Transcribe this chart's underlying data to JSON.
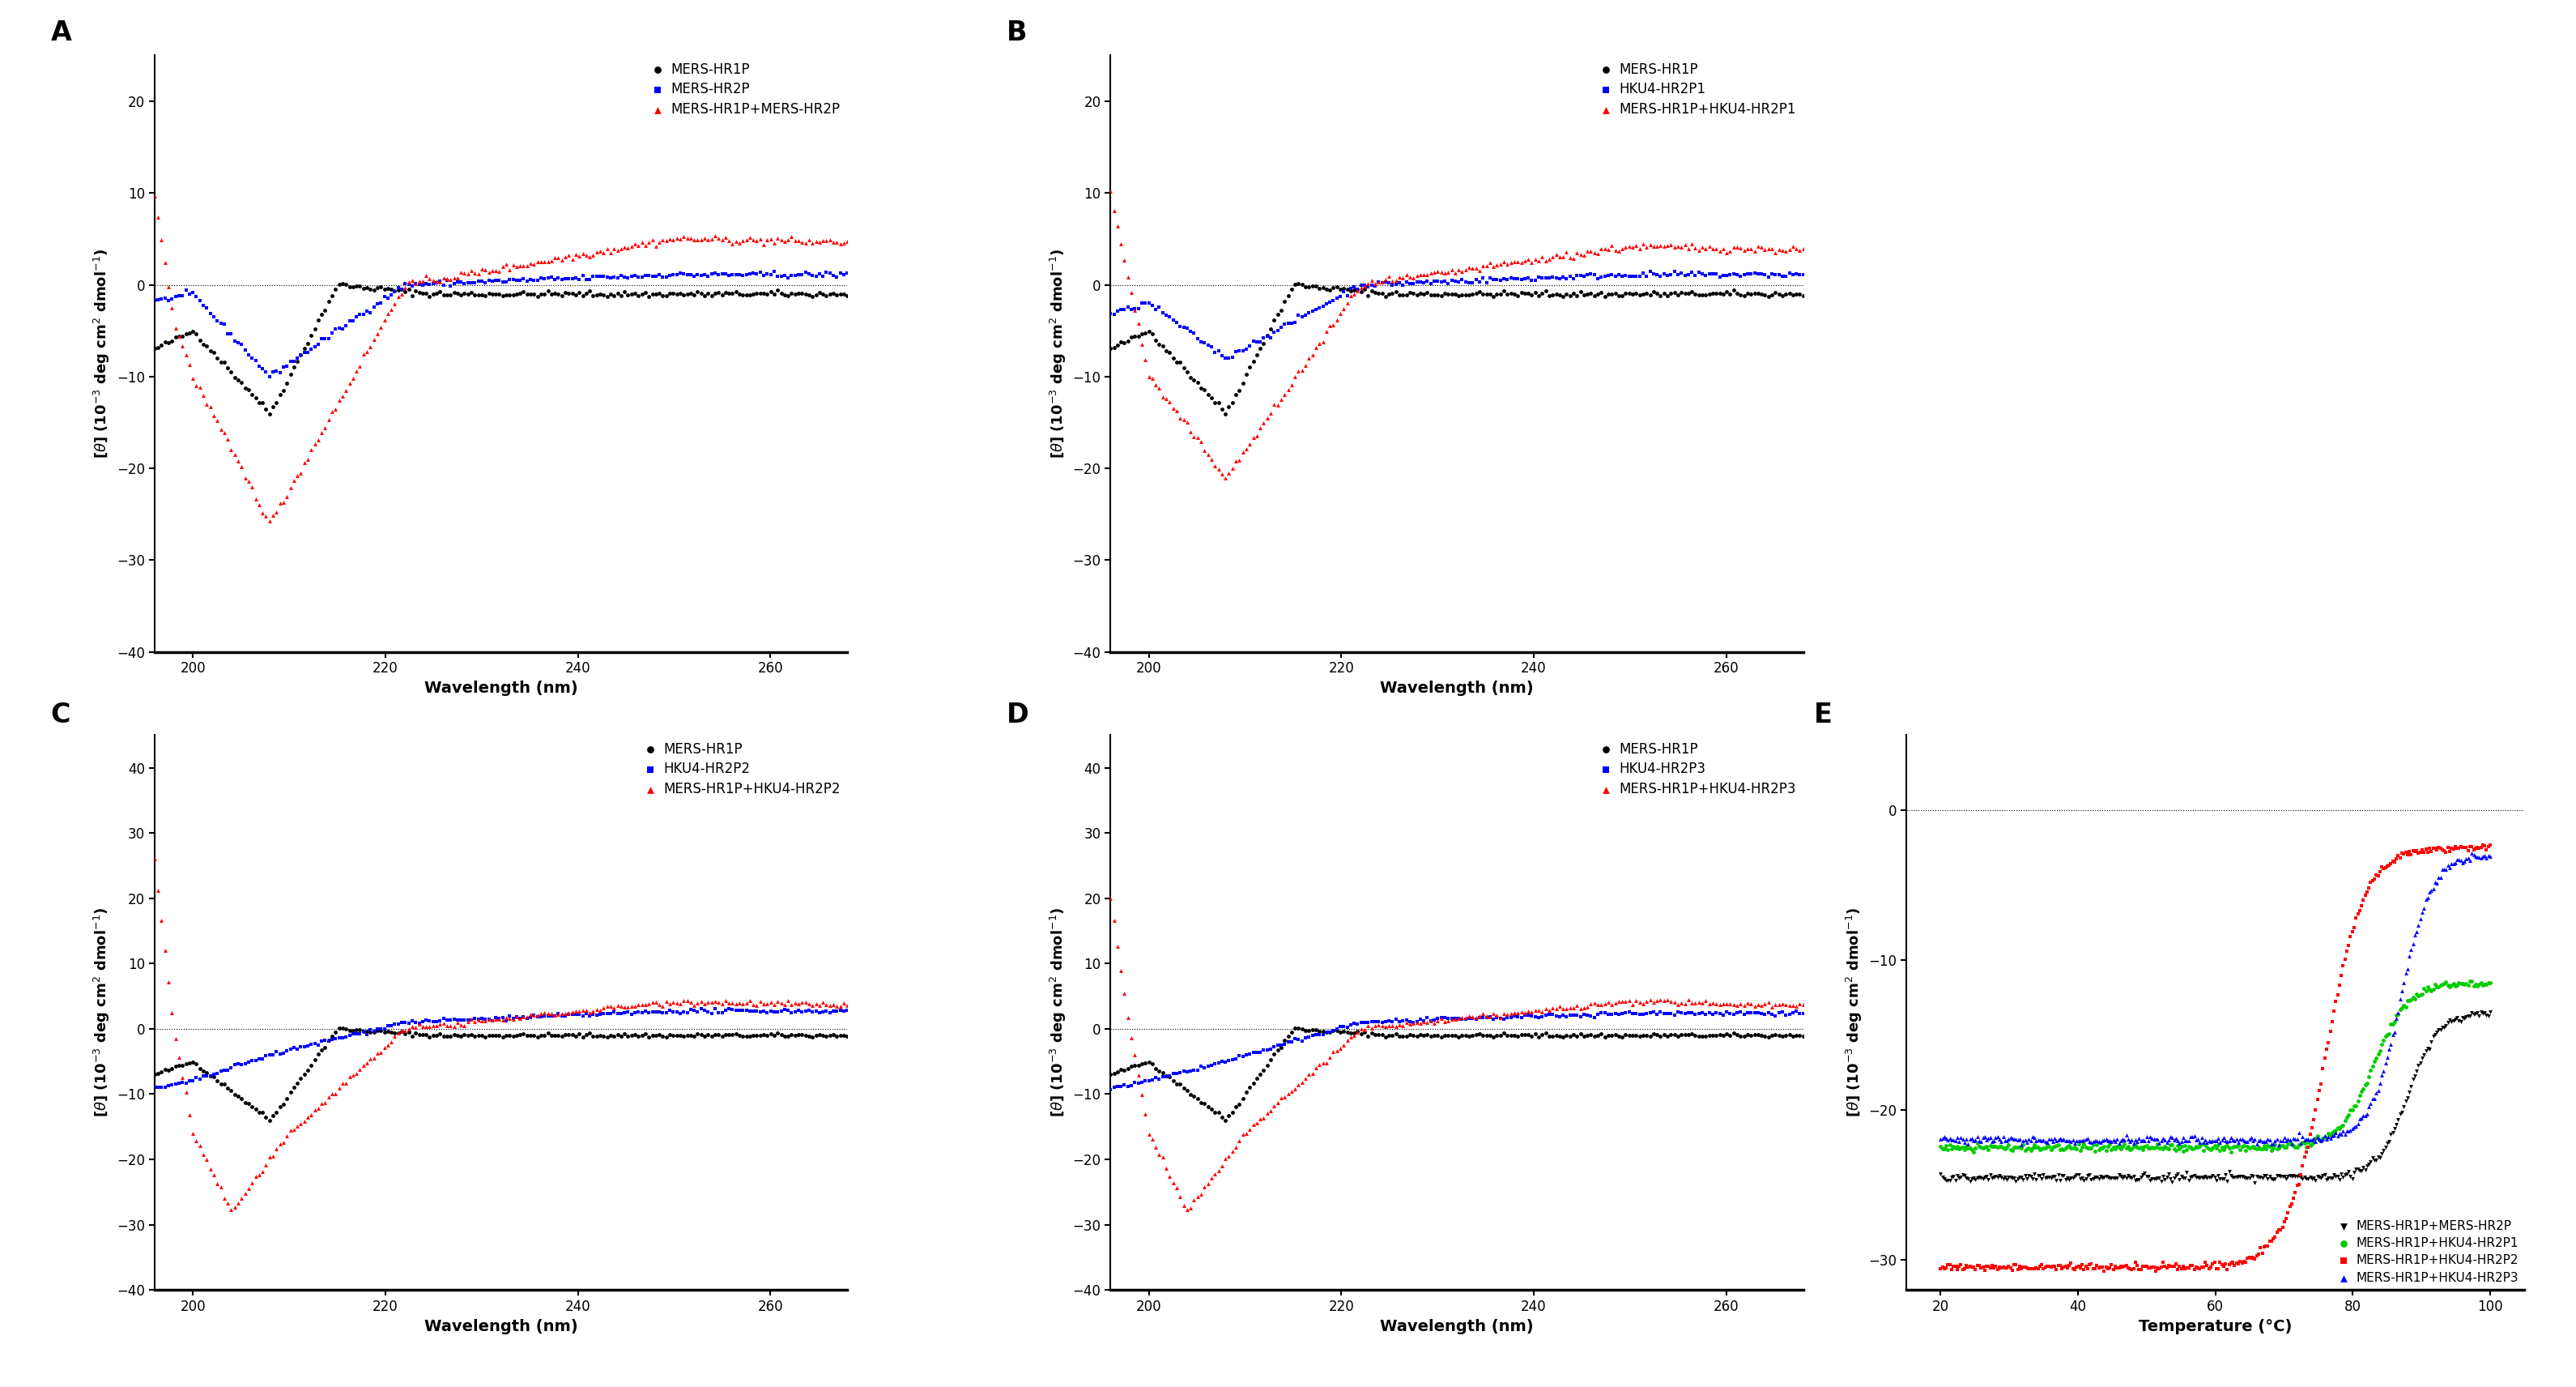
{
  "panel_A": {
    "label": "A",
    "legend": [
      "MERS-HR1P",
      "MERS-HR2P",
      "MERS-HR1P+MERS-HR2P"
    ],
    "colors": [
      "#000000",
      "#0000FF",
      "#FF0000"
    ],
    "markers": [
      "o",
      "s",
      "^"
    ],
    "xlabel": "Wavelength (nm)",
    "xlim": [
      196,
      268
    ],
    "ylim": [
      -40,
      25
    ],
    "yticks": [
      -40,
      -30,
      -20,
      -10,
      0,
      10,
      20
    ],
    "xticks": [
      200,
      220,
      240,
      260
    ]
  },
  "panel_B": {
    "label": "B",
    "legend": [
      "MERS-HR1P",
      "HKU4-HR2P1",
      "MERS-HR1P+HKU4-HR2P1"
    ],
    "colors": [
      "#000000",
      "#0000FF",
      "#FF0000"
    ],
    "markers": [
      "o",
      "s",
      "^"
    ],
    "xlabel": "Wavelength (nm)",
    "xlim": [
      196,
      268
    ],
    "ylim": [
      -40,
      25
    ],
    "yticks": [
      -40,
      -30,
      -20,
      -10,
      0,
      10,
      20
    ],
    "xticks": [
      200,
      220,
      240,
      260
    ]
  },
  "panel_C": {
    "label": "C",
    "legend": [
      "MERS-HR1P",
      "HKU4-HR2P2",
      "MERS-HR1P+HKU4-HR2P2"
    ],
    "colors": [
      "#000000",
      "#0000FF",
      "#FF0000"
    ],
    "markers": [
      "o",
      "s",
      "^"
    ],
    "xlabel": "Wavelength (nm)",
    "xlim": [
      196,
      268
    ],
    "ylim": [
      -40,
      45
    ],
    "yticks": [
      -40,
      -30,
      -20,
      -10,
      0,
      10,
      20,
      30,
      40
    ],
    "xticks": [
      200,
      220,
      240,
      260
    ]
  },
  "panel_D": {
    "label": "D",
    "legend": [
      "MERS-HR1P",
      "HKU4-HR2P3",
      "MERS-HR1P+HKU4-HR2P3"
    ],
    "colors": [
      "#000000",
      "#0000FF",
      "#FF0000"
    ],
    "markers": [
      "o",
      "s",
      "^"
    ],
    "xlabel": "Wavelength (nm)",
    "xlim": [
      196,
      268
    ],
    "ylim": [
      -40,
      45
    ],
    "yticks": [
      -40,
      -30,
      -20,
      -10,
      0,
      10,
      20,
      30,
      40
    ],
    "xticks": [
      200,
      220,
      240,
      260
    ]
  },
  "panel_E": {
    "label": "E",
    "legend": [
      "MERS-HR1P+MERS-HR2P",
      "MERS-HR1P+HKU4-HR2P1",
      "MERS-HR1P+HKU4-HR2P2",
      "MERS-HR1P+HKU4-HR2P3"
    ],
    "colors": [
      "#000000",
      "#00CC00",
      "#FF0000",
      "#0000FF"
    ],
    "markers": [
      "v",
      "o",
      "s",
      "^"
    ],
    "xlabel": "Temperature (°C)",
    "xlim": [
      15,
      105
    ],
    "ylim": [
      -32,
      5
    ],
    "yticks": [
      0,
      -10,
      -20,
      -30
    ],
    "xticks": [
      20,
      40,
      60,
      80,
      100
    ]
  },
  "ylabel_cd": "[θ] (10⁻³ deg cm² dmol⁻¹)",
  "background_color": "#ffffff",
  "label_fontsize": 24,
  "axis_label_fontsize": 14,
  "tick_fontsize": 12,
  "legend_fontsize": 12
}
